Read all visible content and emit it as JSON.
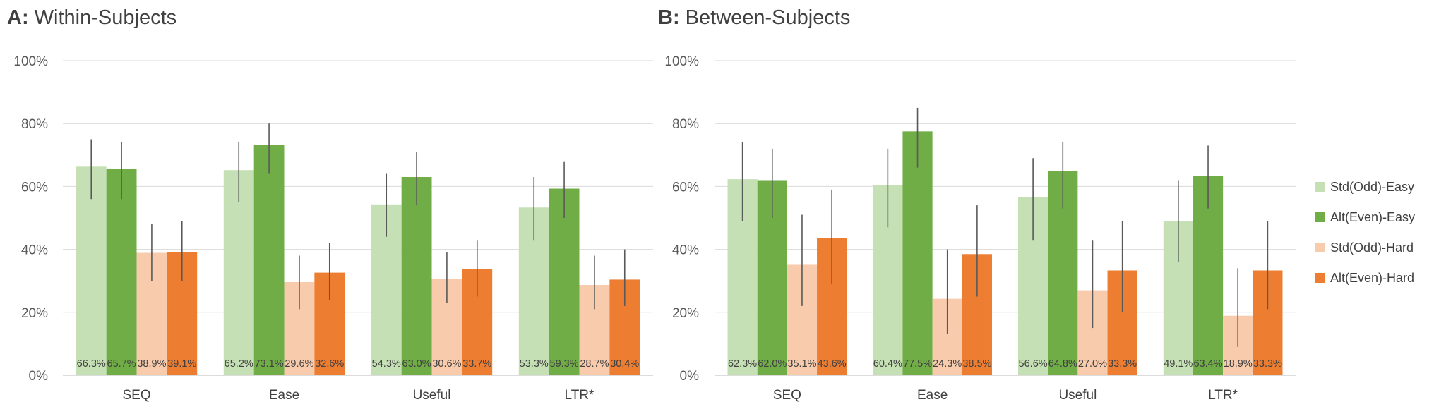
{
  "chart_data": [
    {
      "type": "bar",
      "title_prefix": "A:",
      "title": "Within-Subjects",
      "categories": [
        "SEQ",
        "Ease",
        "Useful",
        "LTR*"
      ],
      "ylim": [
        0,
        100
      ],
      "yticks": [
        "0%",
        "20%",
        "40%",
        "60%",
        "80%",
        "100%"
      ],
      "grid": true,
      "series": [
        {
          "name": "Std(Odd)-Easy",
          "values": [
            66.3,
            65.2,
            54.3,
            53.3
          ],
          "labels": [
            "66.3%",
            "65.2%",
            "54.3%",
            "53.3%"
          ],
          "err": [
            [
              56,
              75
            ],
            [
              55,
              74
            ],
            [
              44,
              64
            ],
            [
              43,
              63
            ]
          ]
        },
        {
          "name": "Alt(Even)-Easy",
          "values": [
            65.7,
            73.1,
            63.0,
            59.3
          ],
          "labels": [
            "65.7%",
            "73.1%",
            "63.0%",
            "59.3%"
          ],
          "err": [
            [
              56,
              74
            ],
            [
              64,
              80
            ],
            [
              54,
              71
            ],
            [
              50,
              68
            ]
          ]
        },
        {
          "name": "Std(Odd)-Hard",
          "values": [
            38.9,
            29.6,
            30.6,
            28.7
          ],
          "labels": [
            "38.9%",
            "29.6%",
            "30.6%",
            "28.7%"
          ],
          "err": [
            [
              30,
              48
            ],
            [
              21,
              38
            ],
            [
              23,
              39
            ],
            [
              21,
              38
            ]
          ]
        },
        {
          "name": "Alt(Even)-Hard",
          "values": [
            39.1,
            32.6,
            33.7,
            30.4
          ],
          "labels": [
            "39.1%",
            "32.6%",
            "33.7%",
            "30.4%"
          ],
          "err": [
            [
              30,
              49
            ],
            [
              24,
              42
            ],
            [
              25,
              43
            ],
            [
              22,
              40
            ]
          ]
        }
      ]
    },
    {
      "type": "bar",
      "title_prefix": "B:",
      "title": "Between-Subjects",
      "categories": [
        "SEQ",
        "Ease",
        "Useful",
        "LTR*"
      ],
      "ylim": [
        0,
        100
      ],
      "yticks": [
        "0%",
        "20%",
        "40%",
        "60%",
        "80%",
        "100%"
      ],
      "grid": true,
      "legend": "right",
      "series": [
        {
          "name": "Std(Odd)-Easy",
          "values": [
            62.3,
            60.4,
            56.6,
            49.1
          ],
          "labels": [
            "62.3%",
            "60.4%",
            "56.6%",
            "49.1%"
          ],
          "err": [
            [
              49,
              74
            ],
            [
              47,
              72
            ],
            [
              43,
              69
            ],
            [
              36,
              62
            ]
          ]
        },
        {
          "name": "Alt(Even)-Easy",
          "values": [
            62.0,
            77.5,
            64.8,
            63.4
          ],
          "labels": [
            "62.0%",
            "77.5%",
            "64.8%",
            "63.4%"
          ],
          "err": [
            [
              50,
              72
            ],
            [
              66,
              85
            ],
            [
              53,
              74
            ],
            [
              53,
              73
            ]
          ]
        },
        {
          "name": "Std(Odd)-Hard",
          "values": [
            35.1,
            24.3,
            27.0,
            18.9
          ],
          "labels": [
            "35.1%",
            "24.3%",
            "27.0%",
            "18.9%"
          ],
          "err": [
            [
              22,
              51
            ],
            [
              13,
              40
            ],
            [
              15,
              43
            ],
            [
              9,
              34
            ]
          ]
        },
        {
          "name": "Alt(Even)-Hard",
          "values": [
            43.6,
            38.5,
            33.3,
            33.3
          ],
          "labels": [
            "43.6%",
            "38.5%",
            "33.3%",
            "33.3%"
          ],
          "err": [
            [
              29,
              59
            ],
            [
              25,
              54
            ],
            [
              20,
              49
            ],
            [
              21,
              49
            ]
          ]
        }
      ]
    }
  ],
  "legend": [
    "Std(Odd)-Easy",
    "Alt(Even)-Easy",
    "Std(Odd)-Hard",
    "Alt(Even)-Hard"
  ],
  "colors": [
    "#c5e0b4",
    "#70ad47",
    "#f8cbad",
    "#ed7d31"
  ]
}
